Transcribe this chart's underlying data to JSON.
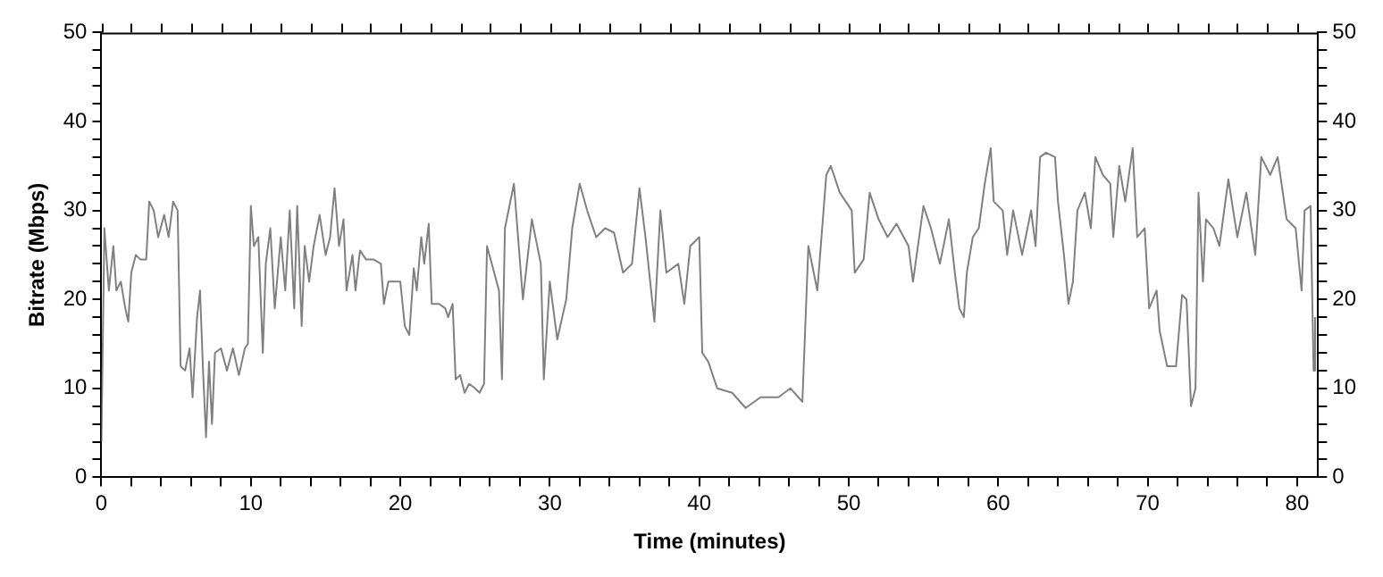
{
  "chart_data": {
    "type": "line",
    "xlabel": "Time (minutes)",
    "ylabel": "Bitrate (Mbps)",
    "grid": false,
    "legend": false,
    "marker": "none",
    "line_style": "solid",
    "xlim": [
      0,
      81.4
    ],
    "ylim": [
      0,
      50
    ],
    "y2lim": [
      0,
      50
    ],
    "xticks": [
      0,
      {
        "value": 2,
        "label": null
      },
      {
        "value": 4,
        "label": null
      },
      {
        "value": 6,
        "label": null
      },
      {
        "value": 8,
        "label": null
      },
      10,
      {
        "value": 12,
        "label": null
      },
      {
        "value": 14,
        "label": null
      },
      {
        "value": 16,
        "label": null
      },
      {
        "value": 18,
        "label": null
      },
      20,
      {
        "value": 22,
        "label": null
      },
      {
        "value": 24,
        "label": null
      },
      {
        "value": 26,
        "label": null
      },
      {
        "value": 28,
        "label": null
      },
      30,
      {
        "value": 32,
        "label": null
      },
      {
        "value": 34,
        "label": null
      },
      {
        "value": 36,
        "label": null
      },
      {
        "value": 38,
        "label": null
      },
      40,
      {
        "value": 42,
        "label": null
      },
      {
        "value": 44,
        "label": null
      },
      {
        "value": 46,
        "label": null
      },
      {
        "value": 48,
        "label": null
      },
      50,
      {
        "value": 52,
        "label": null
      },
      {
        "value": 54,
        "label": null
      },
      {
        "value": 56,
        "label": null
      },
      {
        "value": 58,
        "label": null
      },
      60,
      {
        "value": 62,
        "label": null
      },
      {
        "value": 64,
        "label": null
      },
      {
        "value": 66,
        "label": null
      },
      {
        "value": 68,
        "label": null
      },
      70,
      {
        "value": 72,
        "label": null
      },
      {
        "value": 74,
        "label": null
      },
      {
        "value": 76,
        "label": null
      },
      {
        "value": 78,
        "label": null
      },
      80
    ],
    "yticks": [
      0,
      {
        "value": 2,
        "label": null
      },
      {
        "value": 4,
        "label": null
      },
      {
        "value": 6,
        "label": null
      },
      {
        "value": 8,
        "label": null
      },
      10,
      {
        "value": 12,
        "label": null
      },
      {
        "value": 14,
        "label": null
      },
      {
        "value": 16,
        "label": null
      },
      {
        "value": 18,
        "label": null
      },
      20,
      {
        "value": 22,
        "label": null
      },
      {
        "value": 24,
        "label": null
      },
      {
        "value": 26,
        "label": null
      },
      {
        "value": 28,
        "label": null
      },
      30,
      {
        "value": 32,
        "label": null
      },
      {
        "value": 34,
        "label": null
      },
      {
        "value": 36,
        "label": null
      },
      {
        "value": 38,
        "label": null
      },
      40,
      {
        "value": 42,
        "label": null
      },
      {
        "value": 44,
        "label": null
      },
      {
        "value": 46,
        "label": null
      },
      {
        "value": 48,
        "label": null
      },
      50
    ],
    "y2ticks": [
      0,
      {
        "value": 2,
        "label": null
      },
      {
        "value": 4,
        "label": null
      },
      {
        "value": 6,
        "label": null
      },
      {
        "value": 8,
        "label": null
      },
      10,
      {
        "value": 12,
        "label": null
      },
      {
        "value": 14,
        "label": null
      },
      {
        "value": 16,
        "label": null
      },
      {
        "value": 18,
        "label": null
      },
      20,
      {
        "value": 22,
        "label": null
      },
      {
        "value": 24,
        "label": null
      },
      {
        "value": 26,
        "label": null
      },
      {
        "value": 28,
        "label": null
      },
      30,
      {
        "value": 32,
        "label": null
      },
      {
        "value": 34,
        "label": null
      },
      {
        "value": 36,
        "label": null
      },
      {
        "value": 38,
        "label": null
      },
      40,
      {
        "value": 42,
        "label": null
      },
      {
        "value": 44,
        "label": null
      },
      {
        "value": 46,
        "label": null
      },
      {
        "value": 48,
        "label": null
      },
      50
    ],
    "series": [
      {
        "color": "#808080",
        "x": [
          0,
          0.2,
          0.5,
          0.8,
          1.0,
          1.3,
          1.6,
          1.8,
          2.0,
          2.3,
          2.6,
          3.0,
          3.2,
          3.5,
          3.8,
          4.2,
          4.5,
          4.8,
          5.1,
          5.3,
          5.6,
          5.9,
          6.1,
          6.4,
          6.6,
          6.8,
          7.0,
          7.2,
          7.4,
          7.6,
          8.0,
          8.4,
          8.8,
          9.2,
          9.6,
          9.8,
          10.0,
          10.2,
          10.5,
          10.8,
          11.0,
          11.3,
          11.6,
          12.0,
          12.3,
          12.6,
          12.9,
          13.1,
          13.4,
          13.6,
          13.9,
          14.2,
          14.6,
          15.0,
          15.3,
          15.6,
          15.9,
          16.2,
          16.4,
          16.8,
          17.0,
          17.3,
          17.7,
          18.2,
          18.7,
          18.9,
          19.2,
          19.5,
          20.0,
          20.3,
          20.6,
          20.9,
          21.1,
          21.4,
          21.6,
          21.9,
          22.1,
          22.6,
          23.0,
          23.2,
          23.5,
          23.7,
          24.0,
          24.3,
          24.6,
          25.0,
          25.3,
          25.6,
          25.8,
          26.6,
          26.8,
          27.0,
          27.6,
          28.2,
          28.8,
          29.4,
          29.6,
          30.0,
          30.5,
          31.1,
          31.5,
          32.0,
          32.5,
          33.1,
          33.7,
          34.3,
          34.9,
          35.5,
          36.0,
          36.4,
          37.0,
          37.4,
          37.8,
          38.6,
          39.0,
          39.4,
          40.0,
          40.2,
          40.6,
          41.2,
          42.2,
          43.1,
          44.1,
          45.3,
          46.1,
          46.9,
          47.3,
          47.9,
          48.5,
          48.8,
          49.4,
          50.2,
          50.4,
          51.0,
          51.4,
          52.0,
          52.6,
          53.2,
          54.0,
          54.3,
          55.0,
          55.5,
          56.1,
          56.7,
          57.1,
          57.4,
          57.7,
          57.9,
          58.3,
          58.7,
          59.1,
          59.5,
          59.7,
          60.3,
          60.6,
          61.0,
          61.6,
          62.2,
          62.5,
          62.8,
          63.2,
          63.8,
          64.0,
          64.4,
          64.7,
          65.0,
          65.3,
          65.8,
          66.2,
          66.5,
          67.0,
          67.5,
          67.7,
          68.1,
          68.5,
          69.0,
          69.3,
          69.8,
          70.1,
          70.6,
          70.8,
          71.3,
          71.9,
          72.3,
          72.6,
          72.9,
          73.2,
          73.4,
          73.7,
          73.9,
          74.4,
          74.8,
          75.4,
          76.0,
          76.6,
          77.2,
          77.6,
          78.2,
          78.7,
          79.3,
          79.9,
          80.3,
          80.5,
          80.9,
          81.1,
          81.2
        ],
        "values": [
          4,
          28,
          21,
          26,
          21,
          22,
          19,
          17.5,
          23,
          25,
          24.5,
          24.5,
          31,
          30,
          27,
          29.5,
          27,
          31,
          30,
          12.5,
          12,
          14.5,
          9,
          18,
          21,
          12,
          4.5,
          13,
          6,
          14,
          14.5,
          12,
          14.5,
          11.5,
          14.5,
          15,
          30.5,
          26,
          27,
          14,
          24,
          28,
          19,
          27,
          21,
          30,
          19,
          30.5,
          17,
          26,
          22,
          26,
          29.5,
          25,
          27,
          32.5,
          26,
          29,
          21,
          25,
          21,
          25.5,
          24.5,
          24.5,
          24,
          19.5,
          22,
          22,
          22,
          17,
          16,
          23.5,
          21,
          27,
          24,
          28.5,
          19.5,
          19.5,
          19,
          18,
          19.5,
          11,
          11.5,
          9.5,
          10.5,
          10,
          9.5,
          10.5,
          26,
          21,
          11,
          28,
          33,
          20,
          29,
          24,
          11,
          22,
          15.5,
          20,
          28,
          33,
          30,
          27,
          28,
          27.5,
          23,
          24,
          32.5,
          27,
          17.5,
          30,
          23,
          24,
          19.5,
          26,
          27,
          14,
          13,
          10,
          9.5,
          7.8,
          9,
          9,
          10,
          8.5,
          26,
          21,
          34,
          35,
          32,
          30,
          23,
          24.5,
          32,
          29,
          27,
          28.5,
          26,
          22,
          30.5,
          28,
          24,
          29,
          23,
          19,
          18,
          23,
          27,
          28,
          33,
          37,
          31,
          30,
          25,
          30,
          25,
          30,
          26,
          36,
          36.5,
          36,
          31,
          25,
          19.5,
          22,
          30,
          32,
          28,
          36,
          34,
          33,
          27,
          35,
          31,
          37,
          27,
          28,
          19,
          21,
          16.5,
          12.5,
          12.5,
          20.5,
          20,
          8,
          10,
          32,
          22,
          29,
          28,
          26,
          33.5,
          27,
          32,
          25,
          36,
          34,
          36,
          29,
          28,
          21,
          30,
          30.5,
          12,
          18
        ]
      }
    ]
  }
}
